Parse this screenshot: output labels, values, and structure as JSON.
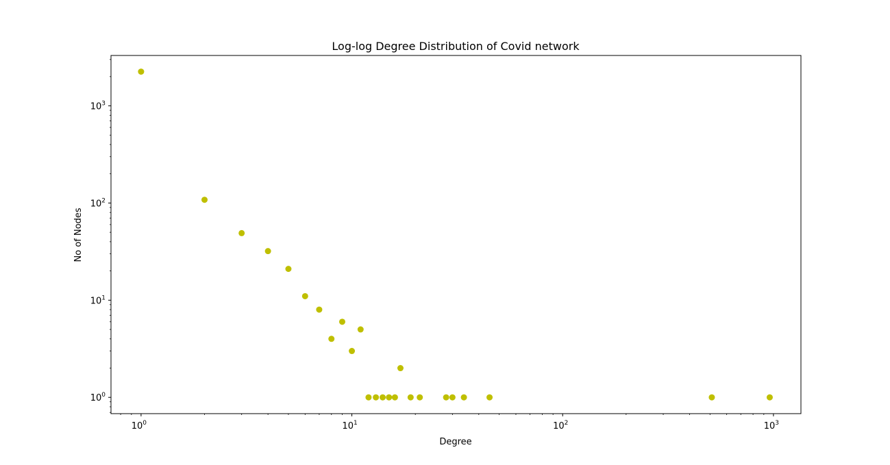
{
  "chart_data": {
    "type": "scatter",
    "title": "Log-log Degree Distribution of Covid network",
    "xlabel": "Degree",
    "ylabel": "No of Nodes",
    "xscale": "log",
    "yscale": "log",
    "xlim": [
      0.72,
      1350
    ],
    "ylim": [
      0.68,
      3300
    ],
    "grid": false,
    "legend": "none",
    "marker_color": "#bfbf00",
    "x_ticks": [
      {
        "base": "10",
        "exp": "0"
      },
      {
        "base": "10",
        "exp": "1"
      },
      {
        "base": "10",
        "exp": "2"
      },
      {
        "base": "10",
        "exp": "3"
      }
    ],
    "y_ticks": [
      {
        "base": "10",
        "exp": "0"
      },
      {
        "base": "10",
        "exp": "1"
      },
      {
        "base": "10",
        "exp": "2"
      },
      {
        "base": "10",
        "exp": "3"
      }
    ],
    "points": [
      {
        "x": 1,
        "y": 2250
      },
      {
        "x": 2,
        "y": 108
      },
      {
        "x": 3,
        "y": 49
      },
      {
        "x": 4,
        "y": 32
      },
      {
        "x": 5,
        "y": 21
      },
      {
        "x": 6,
        "y": 11
      },
      {
        "x": 7,
        "y": 8
      },
      {
        "x": 8,
        "y": 4
      },
      {
        "x": 9,
        "y": 6
      },
      {
        "x": 10,
        "y": 3
      },
      {
        "x": 11,
        "y": 5
      },
      {
        "x": 12,
        "y": 1
      },
      {
        "x": 13,
        "y": 1
      },
      {
        "x": 14,
        "y": 1
      },
      {
        "x": 15,
        "y": 1
      },
      {
        "x": 16,
        "y": 1
      },
      {
        "x": 17,
        "y": 2
      },
      {
        "x": 19,
        "y": 1
      },
      {
        "x": 21,
        "y": 1
      },
      {
        "x": 28,
        "y": 1
      },
      {
        "x": 30,
        "y": 1
      },
      {
        "x": 34,
        "y": 1
      },
      {
        "x": 45,
        "y": 1
      },
      {
        "x": 510,
        "y": 1
      },
      {
        "x": 960,
        "y": 1
      }
    ]
  }
}
